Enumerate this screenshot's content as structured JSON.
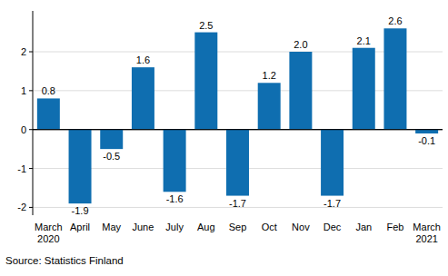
{
  "chart_data": {
    "type": "bar",
    "categories": [
      "March\n2020",
      "April",
      "May",
      "June",
      "July",
      "Aug",
      "Sep",
      "Oct",
      "Nov",
      "Dec",
      "Jan",
      "Feb",
      "March\n2021"
    ],
    "values": [
      0.8,
      -1.9,
      -0.5,
      1.6,
      -1.6,
      2.5,
      -1.7,
      1.2,
      2.0,
      -1.7,
      2.1,
      2.6,
      -0.1
    ],
    "value_labels": [
      "0.8",
      "-1.9",
      "-0.5",
      "1.6",
      "-1.6",
      "2.5",
      "-1.7",
      "1.2",
      "2.0",
      "-1.7",
      "2.1",
      "2.6",
      "-0.1"
    ],
    "color": "#0f6eb0",
    "ylim": [
      -2.2,
      3.05
    ],
    "yticks": [
      -2,
      -1,
      0,
      1,
      2
    ],
    "grid": true,
    "data_labels": true,
    "source": "Source: Statistics Finland"
  }
}
